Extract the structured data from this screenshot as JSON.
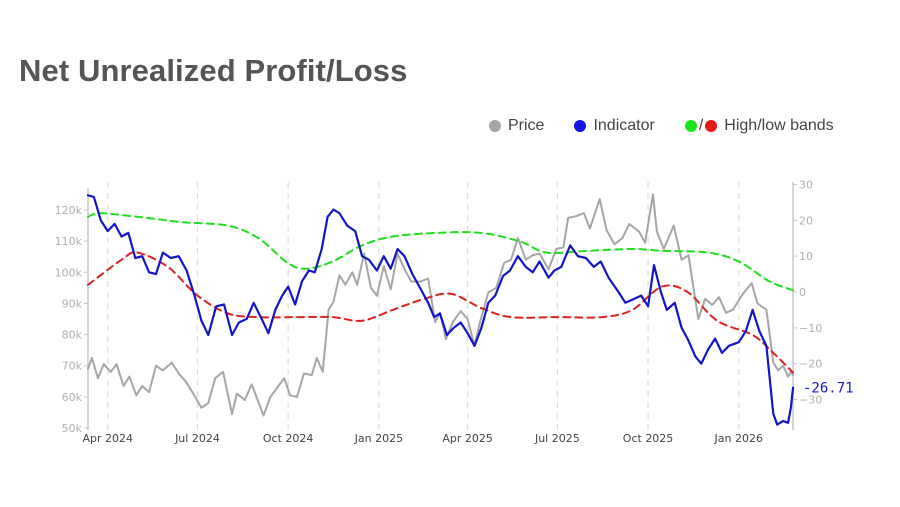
{
  "title": "Net Unrealized Profit/Loss",
  "legend": {
    "price_label": "Price",
    "indicator_label": "Indicator",
    "bands_label": "High/low bands",
    "bands_separator": "/"
  },
  "colors": {
    "price": "#a6a6a6",
    "indicator": "#1515c8",
    "high_band": "#22dd22",
    "low_band": "#dd2222",
    "title": "#555555",
    "axis": "#c8c8c8",
    "grid": "#dddddd"
  },
  "chart_data": {
    "type": "line",
    "title": "Net Unrealized Profit/Loss",
    "xlabel": "",
    "ylabel_left": "Price",
    "ylabel_right": "Indicator",
    "x_range": [
      "2024-03-12",
      "2026-02-25"
    ],
    "x_ticks": [
      {
        "date": "2024-04-01",
        "label": "Apr 2024"
      },
      {
        "date": "2024-07-01",
        "label": "Jul 2024"
      },
      {
        "date": "2024-10-01",
        "label": "Oct 2024"
      },
      {
        "date": "2025-01-01",
        "label": "Jan 2025"
      },
      {
        "date": "2025-04-01",
        "label": "Apr 2025"
      },
      {
        "date": "2025-07-01",
        "label": "Jul 2025"
      },
      {
        "date": "2025-10-01",
        "label": "Oct 2025"
      },
      {
        "date": "2026-01-01",
        "label": "Jan 2026"
      }
    ],
    "y_left": {
      "range": [
        50000,
        128000
      ],
      "ticks": [
        50000,
        60000,
        70000,
        80000,
        90000,
        100000,
        110000,
        120000
      ],
      "tick_labels": [
        "50k",
        "60k",
        "70k",
        "80k",
        "90k",
        "100k",
        "110k",
        "120k"
      ]
    },
    "y_right": {
      "range": [
        -38,
        30
      ],
      "ticks": [
        -30,
        -20,
        -10,
        0,
        10,
        20,
        30
      ],
      "tick_labels": [
        "−30",
        "−20",
        "−10",
        "0",
        "10",
        "20",
        "30"
      ]
    },
    "grid": "vertical-dashed",
    "legend_position": "top-right",
    "last_value_label": "-26.71",
    "series": [
      {
        "name": "Price",
        "axis": "left",
        "points": [
          [
            "2024-03-12",
            69000
          ],
          [
            "2024-03-16",
            72500
          ],
          [
            "2024-03-22",
            66000
          ],
          [
            "2024-03-28",
            70500
          ],
          [
            "2024-04-04",
            68000
          ],
          [
            "2024-04-10",
            70500
          ],
          [
            "2024-04-17",
            63500
          ],
          [
            "2024-04-23",
            66500
          ],
          [
            "2024-04-30",
            60500
          ],
          [
            "2024-05-06",
            63500
          ],
          [
            "2024-05-13",
            61500
          ],
          [
            "2024-05-20",
            70000
          ],
          [
            "2024-05-27",
            68500
          ],
          [
            "2024-06-05",
            71000
          ],
          [
            "2024-06-12",
            67500
          ],
          [
            "2024-06-19",
            65000
          ],
          [
            "2024-06-26",
            61500
          ],
          [
            "2024-07-05",
            56500
          ],
          [
            "2024-07-12",
            58000
          ],
          [
            "2024-07-19",
            66000
          ],
          [
            "2024-07-27",
            68000
          ],
          [
            "2024-08-05",
            54500
          ],
          [
            "2024-08-10",
            61000
          ],
          [
            "2024-08-18",
            59000
          ],
          [
            "2024-08-25",
            64000
          ],
          [
            "2024-09-06",
            54000
          ],
          [
            "2024-09-13",
            60000
          ],
          [
            "2024-09-20",
            63000
          ],
          [
            "2024-09-27",
            66000
          ],
          [
            "2024-10-03",
            60500
          ],
          [
            "2024-10-10",
            60000
          ],
          [
            "2024-10-17",
            67500
          ],
          [
            "2024-10-25",
            67000
          ],
          [
            "2024-10-30",
            72500
          ],
          [
            "2024-11-05",
            68000
          ],
          [
            "2024-11-11",
            88000
          ],
          [
            "2024-11-16",
            90500
          ],
          [
            "2024-11-22",
            99000
          ],
          [
            "2024-11-28",
            96000
          ],
          [
            "2024-12-05",
            100000
          ],
          [
            "2024-12-10",
            96000
          ],
          [
            "2024-12-17",
            106000
          ],
          [
            "2024-12-24",
            95000
          ],
          [
            "2024-12-30",
            92500
          ],
          [
            "2025-01-06",
            102000
          ],
          [
            "2025-01-13",
            94500
          ],
          [
            "2025-01-20",
            106000
          ],
          [
            "2025-01-27",
            101000
          ],
          [
            "2025-02-03",
            97000
          ],
          [
            "2025-02-12",
            97000
          ],
          [
            "2025-02-20",
            98000
          ],
          [
            "2025-02-27",
            84000
          ],
          [
            "2025-03-04",
            87000
          ],
          [
            "2025-03-10",
            78500
          ],
          [
            "2025-03-17",
            84000
          ],
          [
            "2025-03-25",
            87500
          ],
          [
            "2025-04-01",
            85000
          ],
          [
            "2025-04-08",
            76500
          ],
          [
            "2025-04-14",
            84500
          ],
          [
            "2025-04-22",
            93500
          ],
          [
            "2025-04-30",
            95000
          ],
          [
            "2025-05-08",
            103000
          ],
          [
            "2025-05-15",
            104000
          ],
          [
            "2025-05-22",
            111000
          ],
          [
            "2025-05-30",
            104000
          ],
          [
            "2025-06-06",
            105500
          ],
          [
            "2025-06-13",
            106000
          ],
          [
            "2025-06-22",
            101000
          ],
          [
            "2025-06-30",
            107500
          ],
          [
            "2025-07-07",
            108000
          ],
          [
            "2025-07-12",
            117500
          ],
          [
            "2025-07-20",
            118000
          ],
          [
            "2025-07-28",
            119000
          ],
          [
            "2025-08-03",
            114000
          ],
          [
            "2025-08-13",
            123500
          ],
          [
            "2025-08-20",
            113500
          ],
          [
            "2025-08-28",
            109000
          ],
          [
            "2025-09-05",
            111000
          ],
          [
            "2025-09-12",
            115500
          ],
          [
            "2025-09-22",
            113000
          ],
          [
            "2025-09-28",
            109500
          ],
          [
            "2025-10-06",
            125000
          ],
          [
            "2025-10-10",
            113000
          ],
          [
            "2025-10-17",
            107500
          ],
          [
            "2025-10-27",
            115000
          ],
          [
            "2025-11-04",
            104000
          ],
          [
            "2025-11-11",
            105500
          ],
          [
            "2025-11-21",
            85000
          ],
          [
            "2025-11-28",
            91500
          ],
          [
            "2025-12-05",
            89500
          ],
          [
            "2025-12-12",
            92000
          ],
          [
            "2025-12-19",
            87000
          ],
          [
            "2025-12-26",
            88000
          ],
          [
            "2026-01-05",
            93000
          ],
          [
            "2026-01-14",
            96500
          ],
          [
            "2026-01-20",
            90000
          ],
          [
            "2026-01-29",
            88000
          ],
          [
            "2026-02-05",
            71000
          ],
          [
            "2026-02-10",
            68500
          ],
          [
            "2026-02-15",
            70000
          ],
          [
            "2026-02-20",
            66500
          ],
          [
            "2026-02-23",
            68000
          ],
          [
            "2026-02-25",
            67000
          ]
        ]
      },
      {
        "name": "Indicator",
        "axis": "right",
        "points": [
          [
            "2024-03-12",
            27
          ],
          [
            "2024-03-18",
            26.5
          ],
          [
            "2024-03-25",
            20
          ],
          [
            "2024-04-01",
            17
          ],
          [
            "2024-04-08",
            19
          ],
          [
            "2024-04-15",
            15.5
          ],
          [
            "2024-04-22",
            16.5
          ],
          [
            "2024-04-29",
            9.5
          ],
          [
            "2024-05-06",
            10
          ],
          [
            "2024-05-13",
            5.5
          ],
          [
            "2024-05-20",
            5
          ],
          [
            "2024-05-27",
            11
          ],
          [
            "2024-06-04",
            9.5
          ],
          [
            "2024-06-12",
            10
          ],
          [
            "2024-06-20",
            6
          ],
          [
            "2024-06-28",
            -1
          ],
          [
            "2024-07-05",
            -8
          ],
          [
            "2024-07-12",
            -12
          ],
          [
            "2024-07-20",
            -4
          ],
          [
            "2024-07-28",
            -3.5
          ],
          [
            "2024-08-05",
            -12
          ],
          [
            "2024-08-12",
            -8.5
          ],
          [
            "2024-08-20",
            -7.5
          ],
          [
            "2024-08-27",
            -3
          ],
          [
            "2024-09-05",
            -8
          ],
          [
            "2024-09-11",
            -11.5
          ],
          [
            "2024-09-18",
            -5
          ],
          [
            "2024-09-25",
            -1
          ],
          [
            "2024-10-01",
            1.5
          ],
          [
            "2024-10-08",
            -3.5
          ],
          [
            "2024-10-15",
            3
          ],
          [
            "2024-10-22",
            6
          ],
          [
            "2024-10-28",
            5.5
          ],
          [
            "2024-11-04",
            12
          ],
          [
            "2024-11-10",
            21
          ],
          [
            "2024-11-16",
            23
          ],
          [
            "2024-11-22",
            22
          ],
          [
            "2024-11-30",
            18.5
          ],
          [
            "2024-12-08",
            17
          ],
          [
            "2024-12-15",
            10
          ],
          [
            "2024-12-22",
            9
          ],
          [
            "2024-12-30",
            6
          ],
          [
            "2025-01-06",
            10
          ],
          [
            "2025-01-13",
            6.5
          ],
          [
            "2025-01-20",
            12
          ],
          [
            "2025-01-27",
            10
          ],
          [
            "2025-02-04",
            5
          ],
          [
            "2025-02-12",
            1
          ],
          [
            "2025-02-20",
            -3
          ],
          [
            "2025-02-26",
            -7
          ],
          [
            "2025-03-04",
            -6
          ],
          [
            "2025-03-11",
            -12
          ],
          [
            "2025-03-18",
            -10
          ],
          [
            "2025-03-25",
            -8.5
          ],
          [
            "2025-04-01",
            -11.5
          ],
          [
            "2025-04-08",
            -15
          ],
          [
            "2025-04-15",
            -10
          ],
          [
            "2025-04-22",
            -3
          ],
          [
            "2025-04-29",
            -1
          ],
          [
            "2025-05-07",
            4.5
          ],
          [
            "2025-05-14",
            6
          ],
          [
            "2025-05-22",
            10
          ],
          [
            "2025-05-30",
            7
          ],
          [
            "2025-06-06",
            5.5
          ],
          [
            "2025-06-13",
            8.5
          ],
          [
            "2025-06-22",
            4
          ],
          [
            "2025-06-28",
            6
          ],
          [
            "2025-07-05",
            7
          ],
          [
            "2025-07-14",
            13
          ],
          [
            "2025-07-22",
            10
          ],
          [
            "2025-07-30",
            9.5
          ],
          [
            "2025-08-07",
            7
          ],
          [
            "2025-08-14",
            8.5
          ],
          [
            "2025-08-22",
            4
          ],
          [
            "2025-09-01",
            0
          ],
          [
            "2025-09-08",
            -3
          ],
          [
            "2025-09-16",
            -2
          ],
          [
            "2025-09-24",
            -1
          ],
          [
            "2025-10-01",
            -4
          ],
          [
            "2025-10-07",
            7.5
          ],
          [
            "2025-10-14",
            0
          ],
          [
            "2025-10-20",
            -5
          ],
          [
            "2025-10-28",
            -3
          ],
          [
            "2025-11-04",
            -10
          ],
          [
            "2025-11-10",
            -13
          ],
          [
            "2025-11-18",
            -18
          ],
          [
            "2025-11-24",
            -20
          ],
          [
            "2025-12-01",
            -16
          ],
          [
            "2025-12-08",
            -13
          ],
          [
            "2025-12-15",
            -17
          ],
          [
            "2025-12-22",
            -15
          ],
          [
            "2026-01-01",
            -14
          ],
          [
            "2026-01-08",
            -11
          ],
          [
            "2026-01-15",
            -5
          ],
          [
            "2026-01-22",
            -11
          ],
          [
            "2026-01-29",
            -15
          ],
          [
            "2026-02-05",
            -34
          ],
          [
            "2026-02-09",
            -37
          ],
          [
            "2026-02-15",
            -36
          ],
          [
            "2026-02-20",
            -36.5
          ],
          [
            "2026-02-23",
            -32
          ],
          [
            "2026-02-25",
            -26.71
          ]
        ]
      },
      {
        "name": "High band",
        "axis": "right",
        "style": "dashed",
        "points": [
          [
            "2024-03-12",
            21
          ],
          [
            "2024-03-25",
            22
          ],
          [
            "2024-05-01",
            21
          ],
          [
            "2024-06-15",
            19.5
          ],
          [
            "2024-08-01",
            18.5
          ],
          [
            "2024-09-01",
            15
          ],
          [
            "2024-10-01",
            8
          ],
          [
            "2024-10-20",
            6.5
          ],
          [
            "2024-11-15",
            8.5
          ],
          [
            "2024-12-15",
            13
          ],
          [
            "2025-01-15",
            15.5
          ],
          [
            "2025-03-01",
            16.5
          ],
          [
            "2025-04-15",
            16.5
          ],
          [
            "2025-05-25",
            14
          ],
          [
            "2025-06-20",
            11
          ],
          [
            "2025-08-01",
            11.5
          ],
          [
            "2025-09-15",
            12
          ],
          [
            "2025-10-15",
            11.5
          ],
          [
            "2025-12-01",
            11
          ],
          [
            "2026-01-01",
            8.5
          ],
          [
            "2026-02-01",
            3
          ],
          [
            "2026-02-25",
            0.5
          ]
        ]
      },
      {
        "name": "Low band",
        "axis": "right",
        "style": "dashed",
        "points": [
          [
            "2024-03-12",
            2
          ],
          [
            "2024-04-15",
            9
          ],
          [
            "2024-05-01",
            11
          ],
          [
            "2024-06-01",
            7
          ],
          [
            "2024-07-01",
            -1
          ],
          [
            "2024-08-01",
            -6
          ],
          [
            "2024-09-01",
            -7
          ],
          [
            "2024-10-15",
            -7
          ],
          [
            "2024-11-15",
            -7
          ],
          [
            "2024-12-15",
            -8
          ],
          [
            "2025-01-15",
            -5
          ],
          [
            "2025-02-15",
            -2
          ],
          [
            "2025-03-15",
            -0.5
          ],
          [
            "2025-04-15",
            -4.5
          ],
          [
            "2025-05-15",
            -7
          ],
          [
            "2025-07-01",
            -7
          ],
          [
            "2025-08-15",
            -7
          ],
          [
            "2025-09-15",
            -5
          ],
          [
            "2025-10-15",
            1.5
          ],
          [
            "2025-11-10",
            0
          ],
          [
            "2025-12-10",
            -8
          ],
          [
            "2026-01-15",
            -12
          ],
          [
            "2026-02-05",
            -17
          ],
          [
            "2026-02-25",
            -22.5
          ]
        ]
      }
    ]
  }
}
